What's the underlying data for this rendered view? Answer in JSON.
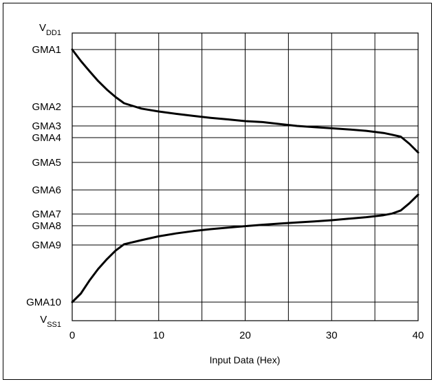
{
  "chart_data": {
    "type": "line",
    "title": "",
    "xlabel": "Input Data (Hex)",
    "ylabel": "",
    "xlim": [
      0,
      40
    ],
    "x_ticks": [
      "0",
      "10",
      "20",
      "30",
      "40"
    ],
    "grid": true,
    "y_levels": [
      {
        "main": "V",
        "sub": "DD1"
      },
      {
        "main": "GMA1",
        "sub": ""
      },
      {
        "main": "GMA2",
        "sub": ""
      },
      {
        "main": "GMA3",
        "sub": ""
      },
      {
        "main": "GMA4",
        "sub": ""
      },
      {
        "main": "GMA5",
        "sub": ""
      },
      {
        "main": "GMA6",
        "sub": ""
      },
      {
        "main": "GMA7",
        "sub": ""
      },
      {
        "main": "GMA8",
        "sub": ""
      },
      {
        "main": "GMA9",
        "sub": ""
      },
      {
        "main": "GMA10",
        "sub": ""
      },
      {
        "main": "V",
        "sub": "SS1"
      }
    ],
    "series": [
      {
        "x": [
          0,
          1,
          2,
          3,
          4,
          5,
          6,
          8,
          10,
          12,
          14,
          16,
          18,
          20,
          22,
          24,
          26,
          28,
          30,
          32,
          34,
          36,
          37,
          38,
          39,
          40
        ],
        "y_level": [
          1.0,
          1.2,
          1.38,
          1.55,
          1.7,
          1.83,
          1.94,
          2.1,
          2.25,
          2.37,
          2.48,
          2.58,
          2.66,
          2.75,
          2.8,
          2.9,
          3.0,
          3.1,
          3.2,
          3.3,
          3.42,
          3.6,
          3.75,
          3.92,
          4.25,
          4.6
        ]
      },
      {
        "x": [
          0,
          1,
          2,
          3,
          4,
          5,
          6,
          8,
          10,
          12,
          14,
          16,
          18,
          20,
          22,
          24,
          26,
          28,
          30,
          32,
          34,
          36,
          37,
          38,
          39,
          40
        ],
        "y_level": [
          10.0,
          9.85,
          9.62,
          9.42,
          9.25,
          9.1,
          8.96,
          8.75,
          8.55,
          8.4,
          8.28,
          8.18,
          8.1,
          8.02,
          7.92,
          7.82,
          7.72,
          7.63,
          7.53,
          7.4,
          7.27,
          7.1,
          6.98,
          6.85,
          6.55,
          6.2
        ]
      }
    ]
  }
}
